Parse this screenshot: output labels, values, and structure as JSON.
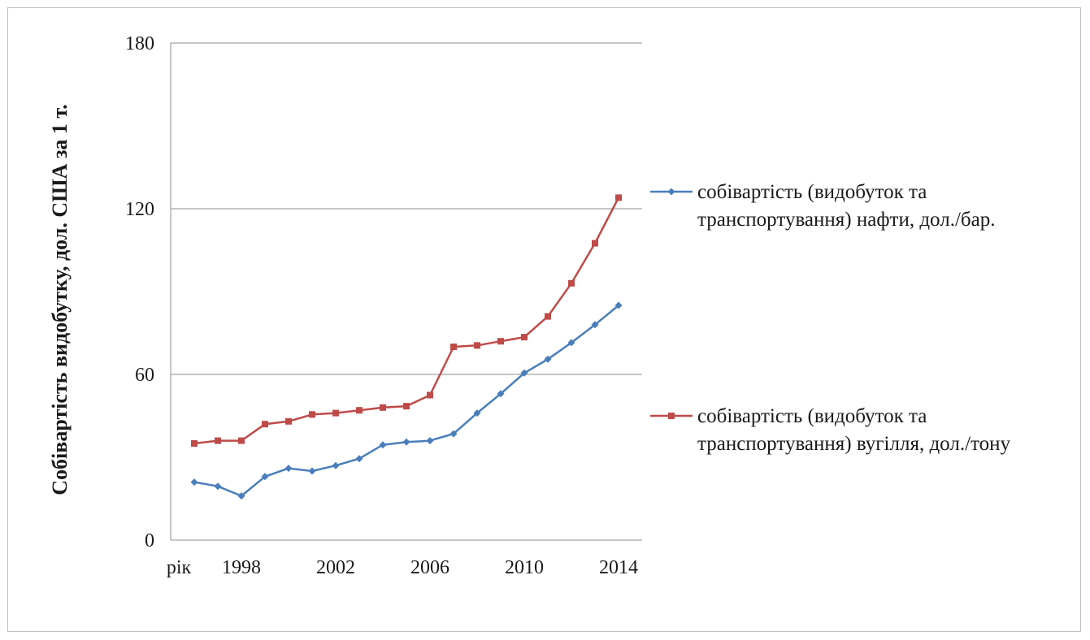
{
  "chart_data": {
    "type": "line",
    "title": "",
    "xlabel": "рік",
    "ylabel": "Собівартість видобутку, дол. США за 1 т.",
    "x": [
      1996,
      1997,
      1998,
      1999,
      2000,
      2001,
      2002,
      2003,
      2004,
      2005,
      2006,
      2007,
      2008,
      2009,
      2010,
      2011,
      2012,
      2013,
      2014
    ],
    "x_ticks": [
      "1998",
      "2002",
      "2006",
      "2010",
      "2014"
    ],
    "y_ticks": [
      "0",
      "60",
      "120",
      "180"
    ],
    "ylim": [
      0,
      180
    ],
    "xlim": [
      1995,
      2015
    ],
    "grid": true,
    "legend_position": "right",
    "series": [
      {
        "name": "собівартість (видобуток та транспортування) нафти, дол./бар.",
        "legend_lines": [
          "собівартість (видобуток та",
          "транспортування) нафти, дол./бар."
        ],
        "color": "#4a7ebb",
        "marker": "diamond",
        "values": [
          21,
          19.5,
          16,
          23,
          26,
          25,
          27,
          29.5,
          34.5,
          35.5,
          36,
          38.5,
          46,
          53,
          60.5,
          65.5,
          71.5,
          78,
          85
        ]
      },
      {
        "name": "собівартість (видобуток та транспортування) вугілля, дол./тону",
        "legend_lines": [
          "собівартість (видобуток та",
          "транспортування) вугілля, дол./тону"
        ],
        "color": "#be4b48",
        "marker": "square",
        "values": [
          35,
          36,
          36,
          42,
          43,
          45.5,
          46,
          47,
          48,
          48.5,
          52.5,
          70,
          70.5,
          72,
          73.5,
          81,
          93,
          107.5,
          124
        ]
      }
    ]
  }
}
